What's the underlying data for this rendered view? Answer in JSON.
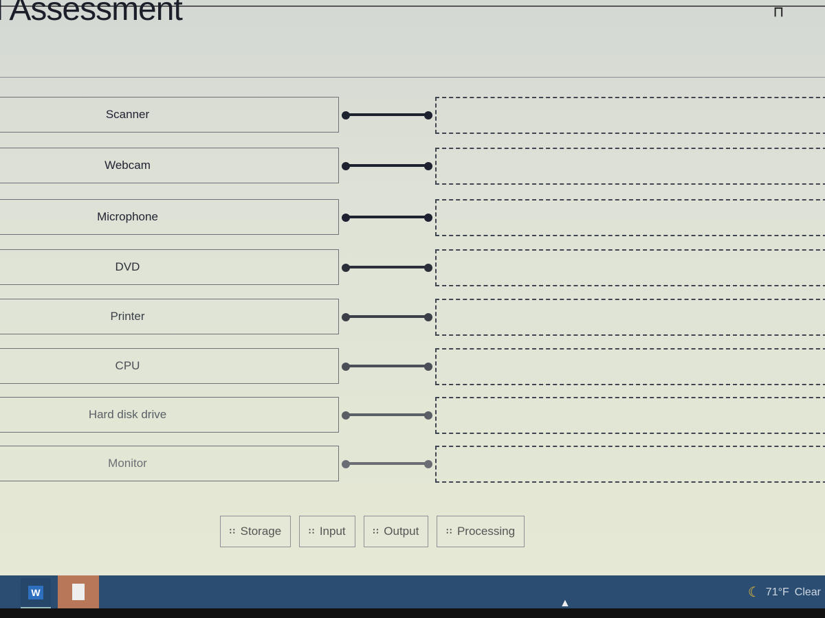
{
  "header": {
    "title": "l Assessment",
    "bookmark_icon": "bookmark-icon"
  },
  "items": [
    {
      "label": "Scanner",
      "target": ""
    },
    {
      "label": "Webcam",
      "target": ""
    },
    {
      "label": "Microphone",
      "target": ""
    },
    {
      "label": "DVD",
      "target": ""
    },
    {
      "label": "Printer",
      "target": ""
    },
    {
      "label": "CPU",
      "target": ""
    },
    {
      "label": "Hard disk drive",
      "target": ""
    },
    {
      "label": "Monitor",
      "target": ""
    }
  ],
  "options": [
    {
      "label": "Storage"
    },
    {
      "label": "Input"
    },
    {
      "label": "Output"
    },
    {
      "label": "Processing"
    }
  ],
  "taskbar": {
    "word_label": "W",
    "weather_temp": "71°F",
    "weather_cond": "Clear"
  }
}
